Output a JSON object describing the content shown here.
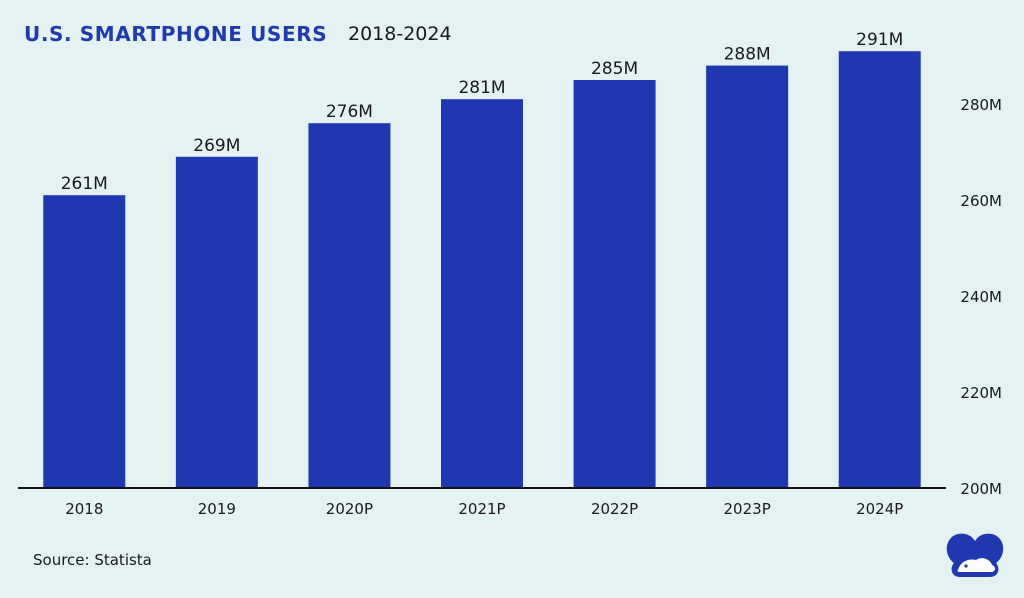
{
  "header": {
    "title": "U.S. SMARTPHONE USERS",
    "subtitle": "2018-2024"
  },
  "footer": {
    "source": "Source: Statista"
  },
  "colors": {
    "bar": "#1f38b0",
    "background": "#e4f2f4",
    "title": "#1f3aae",
    "text": "#1a1a1a"
  },
  "chart_data": {
    "type": "bar",
    "title": "U.S. SMARTPHONE USERS",
    "subtitle": "2018-2024",
    "categories": [
      "2018",
      "2019",
      "2020P",
      "2021P",
      "2022P",
      "2023P",
      "2024P"
    ],
    "values": [
      261,
      269,
      276,
      281,
      285,
      288,
      291
    ],
    "data_labels": [
      "261M",
      "269M",
      "276M",
      "281M",
      "285M",
      "288M",
      "291M"
    ],
    "ylim": [
      200,
      293
    ],
    "y_ticks": [
      200,
      220,
      240,
      260,
      280
    ],
    "y_tick_labels": [
      "200M",
      "220M",
      "240M",
      "260M",
      "280M"
    ],
    "y_axis_position": "right",
    "grid": false,
    "legend": "none"
  },
  "logo": {
    "icon": "logo-icon"
  }
}
